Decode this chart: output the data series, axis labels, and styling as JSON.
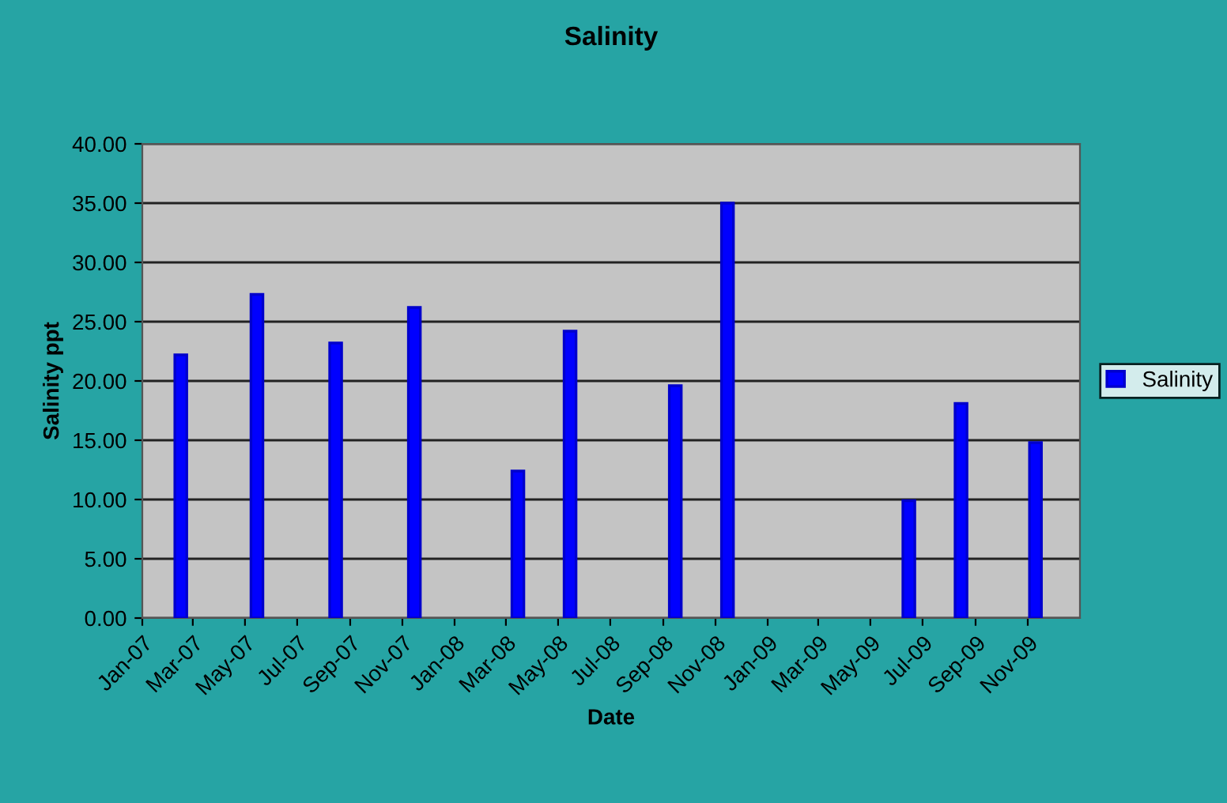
{
  "chart_data": {
    "type": "bar",
    "title": "Salinity",
    "xlabel": "Date",
    "ylabel": "Salinity ppt",
    "x": [
      "2007-02-15",
      "2007-05-15",
      "2007-08-15",
      "2007-11-15",
      "2008-03-15",
      "2008-05-15",
      "2008-09-15",
      "2008-11-15",
      "2009-06-15",
      "2009-08-15",
      "2009-11-10"
    ],
    "series": [
      {
        "name": "Salinity",
        "color": "#0000ff",
        "values": [
          22.2,
          27.3,
          23.2,
          26.2,
          12.4,
          24.2,
          19.6,
          35.0,
          9.9,
          18.1,
          14.8
        ]
      }
    ],
    "xlim": [
      "2007-01-01",
      "2010-01-01"
    ],
    "xticks": [
      {
        "value": "2007-01-01",
        "label": "Jan-07"
      },
      {
        "value": "2007-03-01",
        "label": "Mar-07"
      },
      {
        "value": "2007-05-01",
        "label": "May-07"
      },
      {
        "value": "2007-07-01",
        "label": "Jul-07"
      },
      {
        "value": "2007-09-01",
        "label": "Sep-07"
      },
      {
        "value": "2007-11-01",
        "label": "Nov-07"
      },
      {
        "value": "2008-01-01",
        "label": "Jan-08"
      },
      {
        "value": "2008-03-01",
        "label": "Mar-08"
      },
      {
        "value": "2008-05-01",
        "label": "May-08"
      },
      {
        "value": "2008-07-01",
        "label": "Jul-08"
      },
      {
        "value": "2008-09-01",
        "label": "Sep-08"
      },
      {
        "value": "2008-11-01",
        "label": "Nov-08"
      },
      {
        "value": "2009-01-01",
        "label": "Jan-09"
      },
      {
        "value": "2009-03-01",
        "label": "Mar-09"
      },
      {
        "value": "2009-05-01",
        "label": "May-09"
      },
      {
        "value": "2009-07-01",
        "label": "Jul-09"
      },
      {
        "value": "2009-09-01",
        "label": "Sep-09"
      },
      {
        "value": "2009-11-01",
        "label": "Nov-09"
      }
    ],
    "ylim": [
      0,
      40
    ],
    "yticks": [
      {
        "value": 0,
        "label": "0.00"
      },
      {
        "value": 5,
        "label": "5.00"
      },
      {
        "value": 10,
        "label": "10.00"
      },
      {
        "value": 15,
        "label": "15.00"
      },
      {
        "value": 20,
        "label": "20.00"
      },
      {
        "value": 25,
        "label": "25.00"
      },
      {
        "value": 30,
        "label": "30.00"
      },
      {
        "value": 35,
        "label": "35.00"
      },
      {
        "value": 40,
        "label": "40.00"
      }
    ],
    "grid": "y",
    "legend": "right"
  }
}
